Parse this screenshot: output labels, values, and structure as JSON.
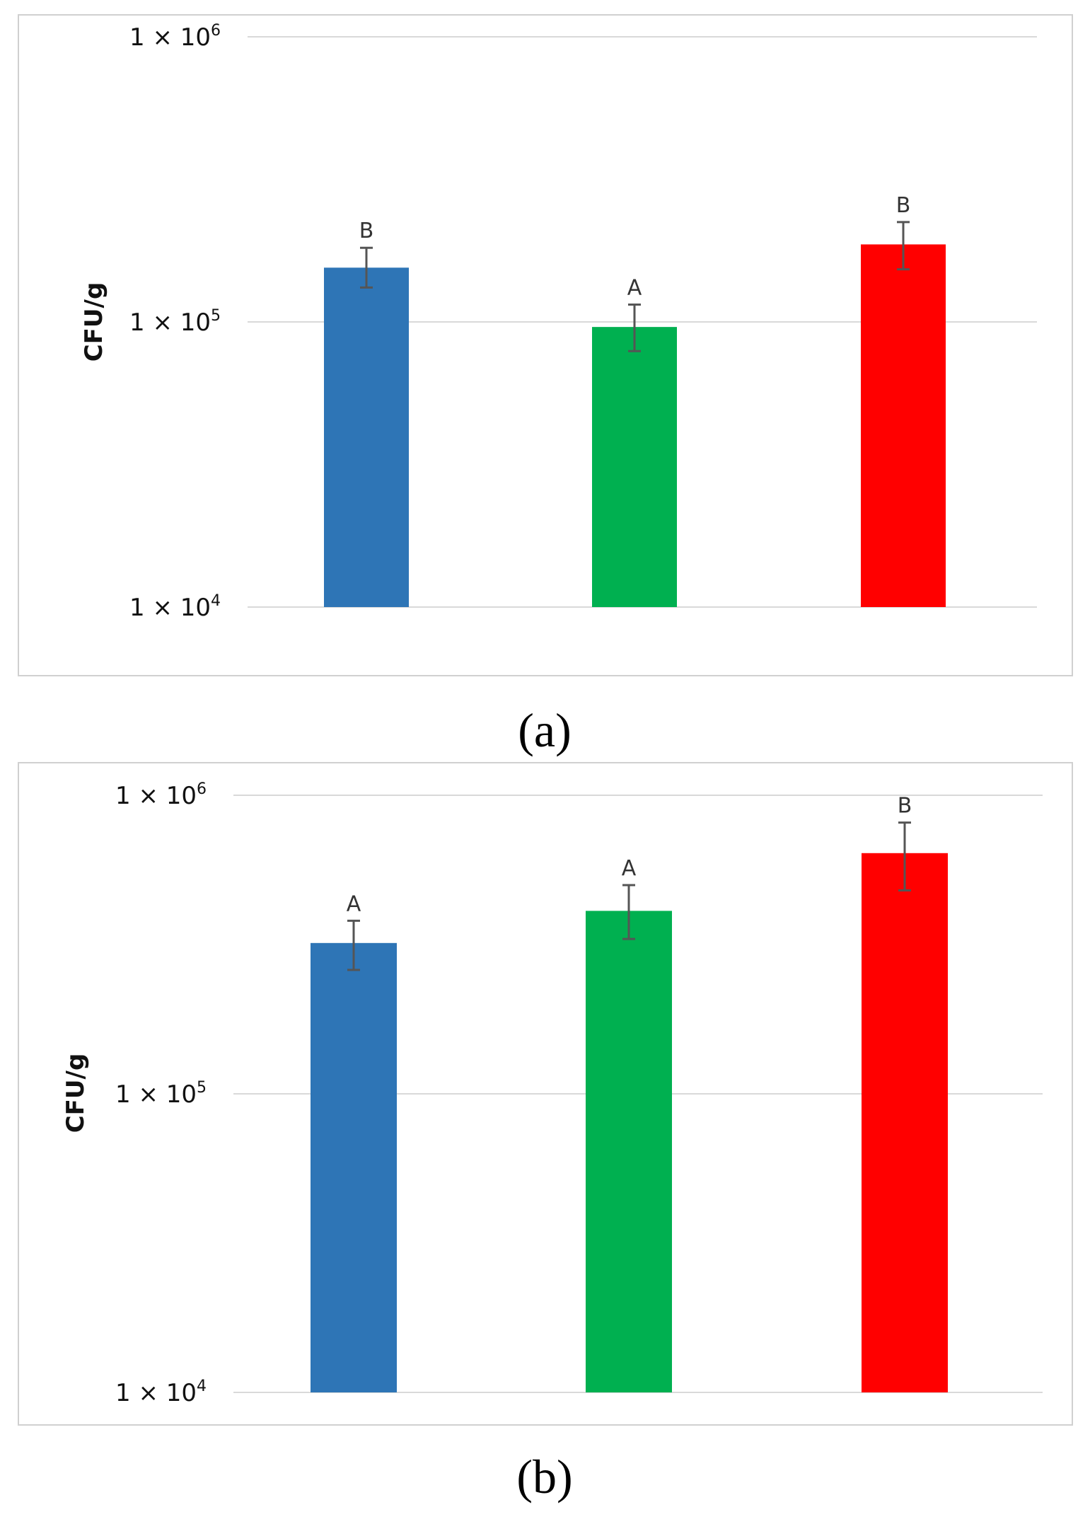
{
  "chart_data": [
    {
      "panel": "a",
      "panel_caption": "(a)",
      "type": "bar",
      "scale": "log",
      "ylabel": "CFU/g",
      "ylim": [
        10000,
        1000000
      ],
      "yticks": [
        {
          "value": 1000000,
          "base": "1 × 10",
          "exp": "6"
        },
        {
          "value": 100000,
          "base": "1 × 10",
          "exp": "5"
        },
        {
          "value": 10000,
          "base": "1 × 10",
          "exp": "4"
        }
      ],
      "series": [
        {
          "color": "#2e75b6",
          "value": 155000,
          "err_low": 132000,
          "err_high": 182000,
          "label": "B"
        },
        {
          "color": "#00b050",
          "value": 96000,
          "err_low": 79000,
          "err_high": 115000,
          "label": "A"
        },
        {
          "color": "#ff0000",
          "value": 187000,
          "err_low": 153000,
          "err_high": 224000,
          "label": "B"
        }
      ]
    },
    {
      "panel": "b",
      "panel_caption": "(b)",
      "type": "bar",
      "scale": "log",
      "ylabel": "CFU/g",
      "ylim": [
        10000,
        1000000
      ],
      "yticks": [
        {
          "value": 1000000,
          "base": "1 × 10",
          "exp": "6"
        },
        {
          "value": 100000,
          "base": "1 × 10",
          "exp": "5"
        },
        {
          "value": 10000,
          "base": "1 × 10",
          "exp": "4"
        }
      ],
      "series": [
        {
          "color": "#2e75b6",
          "value": 320000,
          "err_low": 260000,
          "err_high": 380000,
          "label": "A"
        },
        {
          "color": "#00b050",
          "value": 410000,
          "err_low": 330000,
          "err_high": 500000,
          "label": "A"
        },
        {
          "color": "#ff0000",
          "value": 640000,
          "err_low": 480000,
          "err_high": 810000,
          "label": "B"
        }
      ]
    }
  ]
}
